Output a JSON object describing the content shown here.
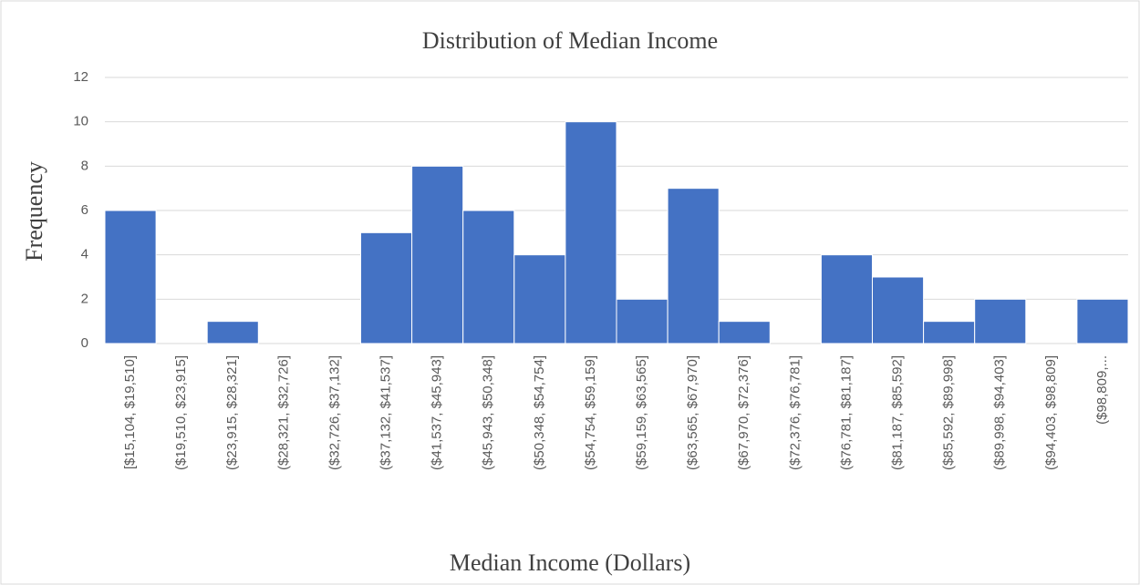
{
  "chart_data": {
    "type": "bar",
    "title": "Distribution of Median Income",
    "x_label": "Median Income (Dollars)",
    "y_label": "Frequency",
    "categories": [
      "[$15,104, $19,510]",
      "($19,510, $23,915]",
      "($23,915, $28,321]",
      "($28,321, $32,726]",
      "($32,726, $37,132]",
      "($37,132, $41,537]",
      "($41,537, $45,943]",
      "($45,943, $50,348]",
      "($50,348, $54,754]",
      "($54,754, $59,159]",
      "($59,159, $63,565]",
      "($63,565, $67,970]",
      "($67,970, $72,376]",
      "($72,376, $76,781]",
      "($76,781, $81,187]",
      "($81,187, $85,592]",
      "($85,592, $89,998]",
      "($89,998, $94,403]",
      "($94,403, $98,809]",
      "($98,809,..."
    ],
    "values": [
      6,
      0,
      1,
      0,
      0,
      5,
      8,
      6,
      4,
      10,
      2,
      7,
      1,
      0,
      4,
      3,
      1,
      2,
      0,
      2
    ],
    "color": "#4472c4",
    "ylim": [
      0,
      12
    ],
    "yticks": [
      0,
      2,
      4,
      6,
      8,
      10,
      12
    ],
    "grid": true
  }
}
